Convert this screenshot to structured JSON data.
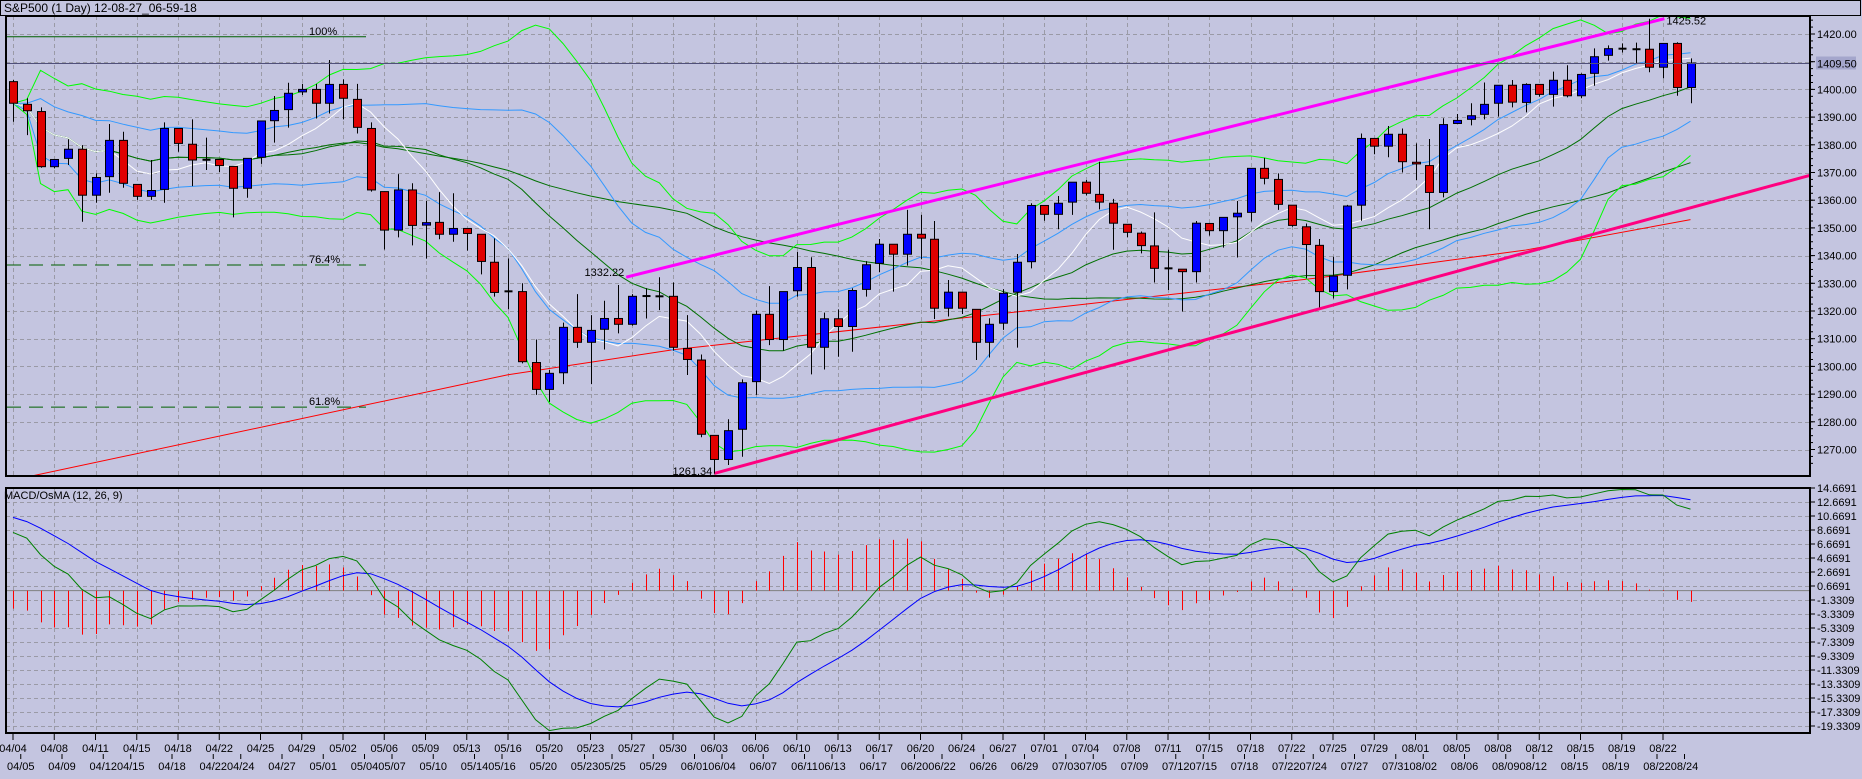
{
  "title": "S&P500 (1 Day) 12-08-27_06-59-18",
  "macd_label": "MACD/OsMA (12, 26, 9)",
  "price_axis": {
    "labels": [
      "1420.00",
      "1410.00",
      "1400.00",
      "1390.00",
      "1380.00",
      "1370.00",
      "1360.00",
      "1350.00",
      "1340.00",
      "1330.00",
      "1320.00",
      "1310.00",
      "1300.00",
      "1290.00",
      "1280.00",
      "1270.00"
    ],
    "current_price": "1409.50"
  },
  "macd_axis": {
    "labels": [
      "14.6691",
      "12.6691",
      "10.6691",
      "8.6691",
      "6.6691",
      "4.6691",
      "2.6691",
      "0.6691",
      "-1.3309",
      "-3.3309",
      "-5.3309",
      "-7.3309",
      "-9.3309",
      "-11.3309",
      "-13.3309",
      "-15.3309",
      "-17.3309",
      "-19.3309"
    ]
  },
  "date_axis": {
    "row1": [
      "04/04",
      "04/08",
      "04/11",
      "04/15",
      "04/18",
      "04/22",
      "04/25",
      "04/29",
      "05/02",
      "05/06",
      "05/09",
      "05/13",
      "05/16",
      "05/20",
      "05/23",
      "05/27",
      "05/30",
      "06/03",
      "06/06",
      "06/10",
      "06/13",
      "06/17",
      "06/20",
      "06/24",
      "06/27",
      "07/01",
      "07/04",
      "07/08",
      "07/11",
      "07/15",
      "07/18",
      "07/22",
      "07/25",
      "07/29",
      "08/01",
      "08/05",
      "08/08",
      "08/12",
      "08/15",
      "08/19",
      "08/22"
    ],
    "row2": [
      "04/05",
      "04/09",
      "04/12",
      "04/15",
      "04/18",
      "04/22",
      "04/24",
      "04/27",
      "05/01",
      "05/04",
      "05/07",
      "05/10",
      "05/14",
      "05/16",
      "05/20",
      "05/23",
      "05/25",
      "05/29",
      "06/01",
      "06/04",
      "06/07",
      "06/11",
      "06/13",
      "06/17",
      "06/20",
      "06/22",
      "06/26",
      "06/29",
      "07/03",
      "07/05",
      "07/09",
      "07/12",
      "07/15",
      "07/18",
      "07/22",
      "07/24",
      "07/27",
      "07/31",
      "08/02",
      "08/06",
      "08/09",
      "08/12",
      "08/15",
      "08/19",
      "08/22",
      "08/24"
    ]
  },
  "colors": {
    "background": "#c4c5e0",
    "up_candle": "#0000ff",
    "down_candle": "#e00000",
    "bollinger_outer": "#00ff00",
    "bollinger_inner": "#3399ff",
    "ma_mid": "#007000",
    "ma_fast": "#ffffff",
    "ma_long": "#ff0000",
    "trend_upper": "#ff00ff",
    "trend_lower": "#ff0080",
    "fib": "#006000",
    "macd_line": "#008000",
    "signal_line": "#0000ff",
    "osma_hist": "#ff0000",
    "current_price_line": "#50507a"
  },
  "chart_data": {
    "type": "candlestick",
    "title": "S&P500 (1 Day)",
    "ylim": [
      1260.4,
      1426.5
    ],
    "ohlc": [
      [
        1402.8,
        1403.4,
        1388.3,
        1395.0
      ],
      [
        1394.6,
        1396.8,
        1383.5,
        1392.3
      ],
      [
        1392.0,
        1393.5,
        1371.7,
        1372.1
      ],
      [
        1372.1,
        1374.7,
        1371.5,
        1374.7
      ],
      [
        1375.1,
        1382.0,
        1372.7,
        1378.4
      ],
      [
        1378.4,
        1379.9,
        1352.2,
        1361.8
      ],
      [
        1361.8,
        1369.7,
        1359.1,
        1368.2
      ],
      [
        1368.5,
        1387.5,
        1362.7,
        1381.6
      ],
      [
        1381.6,
        1384.7,
        1364.5,
        1366.1
      ],
      [
        1365.7,
        1365.7,
        1360.1,
        1361.4
      ],
      [
        1361.4,
        1374.5,
        1360.1,
        1363.5
      ],
      [
        1363.9,
        1388.1,
        1359.1,
        1385.9
      ],
      [
        1385.9,
        1385.9,
        1377.5,
        1380.5
      ],
      [
        1380.2,
        1389.2,
        1365.1,
        1374.5
      ],
      [
        1374.6,
        1382.6,
        1370.9,
        1374.6
      ],
      [
        1374.7,
        1374.7,
        1370.2,
        1372.5
      ],
      [
        1372.2,
        1372.2,
        1353.8,
        1364.3
      ],
      [
        1364.3,
        1375.1,
        1360.9,
        1375.1
      ],
      [
        1375.5,
        1388.6,
        1373.1,
        1388.6
      ],
      [
        1388.7,
        1397.6,
        1380.8,
        1392.4
      ],
      [
        1392.7,
        1402.4,
        1386.2,
        1398.6
      ],
      [
        1399.1,
        1402.0,
        1398.0,
        1400.0
      ],
      [
        1400.0,
        1402.0,
        1389.5,
        1395.0
      ],
      [
        1395.0,
        1410.6,
        1391.3,
        1401.8
      ],
      [
        1401.8,
        1403.6,
        1389.2,
        1396.8
      ],
      [
        1396.4,
        1402.0,
        1384.1,
        1386.3
      ],
      [
        1385.9,
        1388.1,
        1363.1,
        1363.7
      ],
      [
        1363.1,
        1363.1,
        1342.2,
        1349.2
      ],
      [
        1349.2,
        1369.4,
        1346.6,
        1363.7
      ],
      [
        1363.7,
        1366.1,
        1343.7,
        1350.9
      ],
      [
        1351.0,
        1359.7,
        1338.9,
        1351.9
      ],
      [
        1352.0,
        1362.9,
        1345.9,
        1347.7
      ],
      [
        1347.7,
        1362.5,
        1345.0,
        1349.8
      ],
      [
        1349.8,
        1349.8,
        1341.8,
        1348.0
      ],
      [
        1347.7,
        1347.7,
        1333.2,
        1337.9
      ],
      [
        1337.6,
        1346.2,
        1325.2,
        1326.7
      ],
      [
        1327.1,
        1339.0,
        1320.6,
        1327.0
      ],
      [
        1327.0,
        1330.0,
        1301.1,
        1301.7
      ],
      [
        1301.4,
        1309.7,
        1289.7,
        1291.7
      ],
      [
        1291.7,
        1298.7,
        1287.2,
        1297.5
      ],
      [
        1297.7,
        1315.8,
        1293.6,
        1314.1
      ],
      [
        1314.1,
        1326.1,
        1306.7,
        1308.7
      ],
      [
        1308.7,
        1318.5,
        1293.6,
        1313.0
      ],
      [
        1313.4,
        1323.7,
        1306.1,
        1317.3
      ],
      [
        1317.3,
        1329.4,
        1311.9,
        1315.2
      ],
      [
        1315.2,
        1326.1,
        1314.7,
        1325.3
      ],
      [
        1325.2,
        1328.2,
        1317.3,
        1325.4
      ],
      [
        1325.2,
        1332.2,
        1320.3,
        1325.3
      ],
      [
        1325.3,
        1330.3,
        1305.7,
        1306.9
      ],
      [
        1306.5,
        1318.5,
        1296.9,
        1302.5
      ],
      [
        1302.3,
        1304.3,
        1274.4,
        1275.5
      ],
      [
        1275.1,
        1275.1,
        1261.3,
        1266.4
      ],
      [
        1266.4,
        1280.9,
        1264.4,
        1276.8
      ],
      [
        1277.3,
        1295.3,
        1267.4,
        1294.1
      ],
      [
        1294.5,
        1320.1,
        1289.7,
        1318.8
      ],
      [
        1318.8,
        1329.0,
        1307.7,
        1309.7
      ],
      [
        1309.7,
        1327.0,
        1305.7,
        1327.0
      ],
      [
        1327.3,
        1341.4,
        1325.2,
        1335.7
      ],
      [
        1335.7,
        1339.4,
        1297.1,
        1306.9
      ],
      [
        1306.9,
        1319.4,
        1298.9,
        1317.2
      ],
      [
        1317.2,
        1320.6,
        1303.5,
        1314.4
      ],
      [
        1314.4,
        1328.2,
        1305.3,
        1327.4
      ],
      [
        1327.8,
        1338.0,
        1325.2,
        1336.7
      ],
      [
        1337.2,
        1346.0,
        1334.0,
        1344.1
      ],
      [
        1344.1,
        1344.1,
        1327.0,
        1340.5
      ],
      [
        1340.5,
        1356.5,
        1336.4,
        1347.7
      ],
      [
        1347.7,
        1354.7,
        1338.7,
        1346.3
      ],
      [
        1345.9,
        1352.5,
        1317.1,
        1321.0
      ],
      [
        1321.0,
        1331.2,
        1318.0,
        1326.8
      ],
      [
        1326.8,
        1326.8,
        1318.9,
        1321.0
      ],
      [
        1320.6,
        1320.6,
        1302.3,
        1308.7
      ],
      [
        1308.7,
        1317.4,
        1303.2,
        1315.2
      ],
      [
        1315.6,
        1327.9,
        1313.2,
        1326.4
      ],
      [
        1326.8,
        1340.6,
        1306.8,
        1337.6
      ],
      [
        1337.8,
        1358.9,
        1335.4,
        1358.1
      ],
      [
        1358.1,
        1358.1,
        1352.6,
        1354.9
      ],
      [
        1354.9,
        1361.5,
        1349.5,
        1358.9
      ],
      [
        1359.3,
        1366.5,
        1354.7,
        1366.5
      ],
      [
        1366.5,
        1367.3,
        1361.7,
        1362.5
      ],
      [
        1362.1,
        1373.9,
        1356.7,
        1359.3
      ],
      [
        1358.9,
        1360.5,
        1342.1,
        1351.7
      ],
      [
        1351.3,
        1351.3,
        1346.6,
        1348.4
      ],
      [
        1348.1,
        1348.7,
        1340.8,
        1343.6
      ],
      [
        1343.5,
        1355.6,
        1330.3,
        1335.4
      ],
      [
        1335.4,
        1342.1,
        1327.6,
        1335.4
      ],
      [
        1335.1,
        1335.1,
        1319.8,
        1334.2
      ],
      [
        1334.2,
        1352.5,
        1330.3,
        1351.7
      ],
      [
        1351.6,
        1351.6,
        1347.2,
        1349.0
      ],
      [
        1349.0,
        1353.8,
        1342.9,
        1353.8
      ],
      [
        1354.0,
        1359.7,
        1339.3,
        1355.3
      ],
      [
        1355.6,
        1371.5,
        1352.3,
        1371.5
      ],
      [
        1371.5,
        1375.3,
        1365.7,
        1367.9
      ],
      [
        1367.5,
        1369.7,
        1356.5,
        1358.5
      ],
      [
        1358.2,
        1358.2,
        1350.4,
        1350.9
      ],
      [
        1350.4,
        1351.6,
        1331.8,
        1344.0
      ],
      [
        1343.7,
        1346.0,
        1321.3,
        1327.0
      ],
      [
        1327.0,
        1339.6,
        1324.5,
        1332.6
      ],
      [
        1332.9,
        1358.3,
        1327.8,
        1357.9
      ],
      [
        1358.2,
        1384.1,
        1352.6,
        1382.3
      ],
      [
        1382.3,
        1382.3,
        1376.6,
        1379.5
      ],
      [
        1379.5,
        1386.8,
        1375.5,
        1383.8
      ],
      [
        1383.8,
        1385.9,
        1370.0,
        1373.9
      ],
      [
        1373.7,
        1380.5,
        1367.3,
        1373.1
      ],
      [
        1372.5,
        1382.1,
        1349.5,
        1362.8
      ],
      [
        1362.8,
        1389.6,
        1361.0,
        1387.3
      ],
      [
        1387.7,
        1391.1,
        1387.5,
        1388.8
      ],
      [
        1389.2,
        1395.0,
        1387.0,
        1390.5
      ],
      [
        1391.0,
        1402.5,
        1389.2,
        1394.6
      ],
      [
        1395.0,
        1401.5,
        1390.2,
        1401.5
      ],
      [
        1401.5,
        1403.4,
        1393.5,
        1395.4
      ],
      [
        1395.3,
        1402.2,
        1391.7,
        1401.8
      ],
      [
        1401.8,
        1401.8,
        1397.4,
        1398.2
      ],
      [
        1398.2,
        1406.4,
        1393.8,
        1403.3
      ],
      [
        1403.3,
        1408.7,
        1397.1,
        1397.7
      ],
      [
        1397.7,
        1405.8,
        1396.8,
        1405.4
      ],
      [
        1405.8,
        1414.8,
        1401.3,
        1411.8
      ],
      [
        1412.3,
        1415.9,
        1410.4,
        1414.7
      ],
      [
        1414.7,
        1416.6,
        1413.3,
        1414.7
      ],
      [
        1414.5,
        1416.9,
        1409.4,
        1414.5
      ],
      [
        1414.5,
        1425.5,
        1406.2,
        1408.0
      ],
      [
        1408.0,
        1416.6,
        1404.0,
        1416.6
      ],
      [
        1416.6,
        1417.0,
        1397.7,
        1400.7
      ],
      [
        1400.7,
        1411.2,
        1395.0,
        1409.5
      ]
    ],
    "ma_long_points": [
      [
        0,
        1259
      ],
      [
        36,
        1297
      ],
      [
        48,
        1306
      ],
      [
        70,
        1318
      ],
      [
        95,
        1332
      ],
      [
        110,
        1342
      ],
      [
        122,
        1353
      ]
    ],
    "annotations": {
      "high_label": "1425.52",
      "low_label": "1261.34",
      "swing_label": "1332.22"
    },
    "fibonacci": [
      {
        "label": "100%",
        "price": 1419.0,
        "style": "solid"
      },
      {
        "label": "76.4%",
        "price": 1336.6,
        "style": "dashed"
      },
      {
        "label": "61.8%",
        "price": 1285.3,
        "style": "dashed"
      }
    ],
    "trendlines": [
      {
        "name": "upper",
        "points": [
          [
            44.6,
            1332.22
          ],
          [
            120.1,
            1425.52
          ]
        ]
      },
      {
        "name": "lower",
        "points": [
          [
            51,
            1261.34
          ],
          [
            130.7,
            1369.0
          ]
        ]
      }
    ],
    "macd": {
      "fast": 12,
      "slow": 26,
      "signal": 9,
      "ylim": [
        -20.33,
        16.9
      ]
    }
  }
}
